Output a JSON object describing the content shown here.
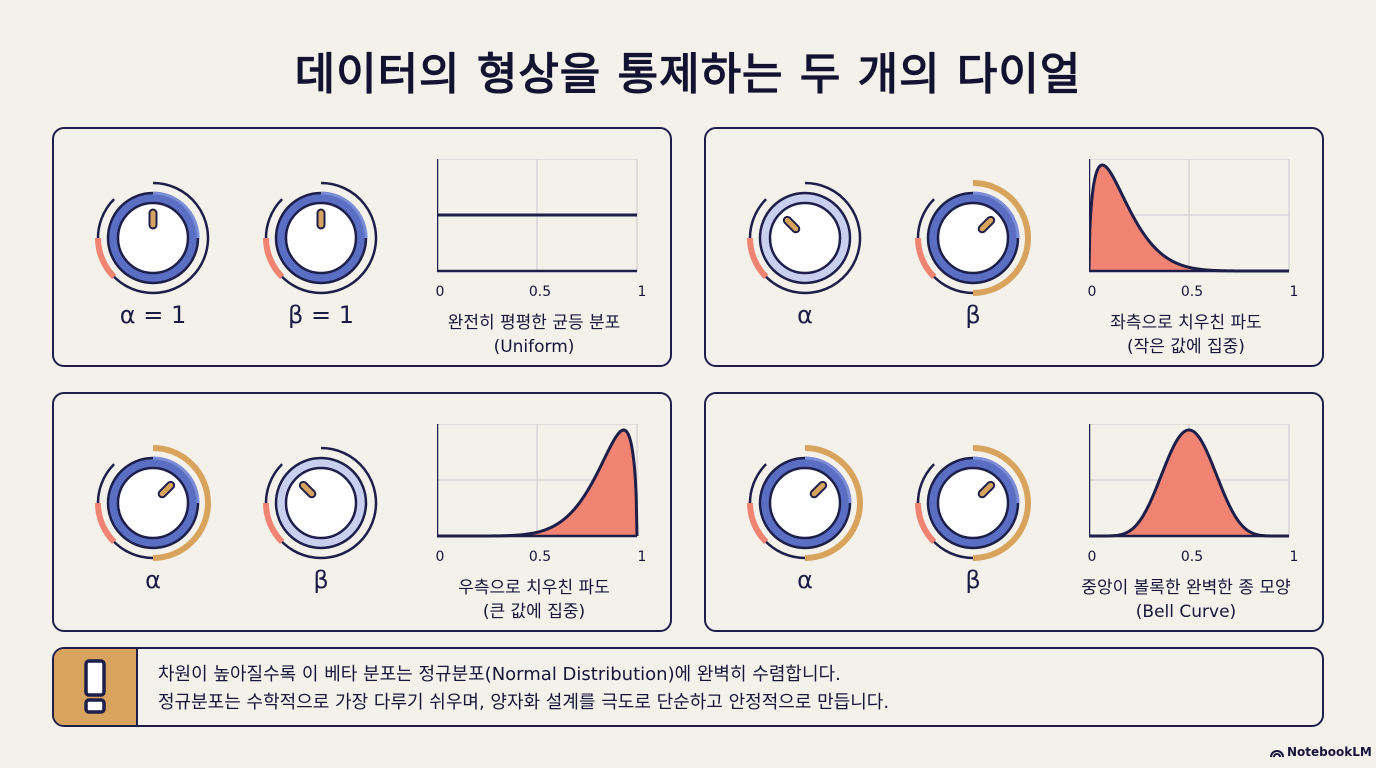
{
  "title": "데이터의 형상을 통제하는 두 개의 다이얼",
  "colors": {
    "navy": "#1d1f4a",
    "knob_blue": "#5a6fc4",
    "knob_pale": "#c9cfee",
    "orange": "#d8a35c",
    "coral": "#f08372",
    "background": "#f3f1ea"
  },
  "panels": [
    {
      "alpha_label": "α = 1",
      "beta_label": "β = 1",
      "alpha_knob": {
        "style": "normal",
        "level": 0.5
      },
      "beta_knob": {
        "style": "normal",
        "level": 0.5
      },
      "caption_line1": "완전히 평평한 균등 분포",
      "caption_line2": "(Uniform)",
      "chart_data": {
        "type": "line",
        "distribution": "Beta(1,1)",
        "alpha": 1,
        "beta": 1,
        "x_ticks": [
          "0",
          "0.5",
          "1"
        ],
        "xlim": [
          0,
          1
        ],
        "grid": true,
        "filled": false
      }
    },
    {
      "alpha_label": "α",
      "beta_label": "β",
      "alpha_knob": {
        "style": "pale",
        "level": 0.25
      },
      "beta_knob": {
        "style": "highlight",
        "level": 0.75
      },
      "caption_line1": "좌측으로 치우친 파도",
      "caption_line2": "(작은 값에 집중)",
      "chart_data": {
        "type": "area",
        "distribution": "Beta(small α, large β)",
        "alpha": 1.5,
        "beta": 8,
        "x_ticks": [
          "0",
          "0.5",
          "1"
        ],
        "xlim": [
          0,
          1
        ],
        "grid": true,
        "filled": true
      }
    },
    {
      "alpha_label": "α",
      "beta_label": "β",
      "alpha_knob": {
        "style": "highlight",
        "level": 0.75
      },
      "beta_knob": {
        "style": "pale",
        "level": 0.25
      },
      "caption_line1": "우측으로 치우친 파도",
      "caption_line2": "(큰 값에 집중)",
      "chart_data": {
        "type": "area",
        "distribution": "Beta(large α, small β)",
        "alpha": 8,
        "beta": 1.5,
        "x_ticks": [
          "0",
          "0.5",
          "1"
        ],
        "xlim": [
          0,
          1
        ],
        "grid": true,
        "filled": true
      }
    },
    {
      "alpha_label": "α",
      "beta_label": "β",
      "alpha_knob": {
        "style": "highlight",
        "level": 0.75
      },
      "beta_knob": {
        "style": "highlight",
        "level": 0.75
      },
      "caption_line1": "중앙이 볼록한 완벽한 종 모양",
      "caption_line2": "(Bell Curve)",
      "chart_data": {
        "type": "area",
        "distribution": "Beta(large α, large β)",
        "alpha": 8,
        "beta": 8,
        "x_ticks": [
          "0",
          "0.5",
          "1"
        ],
        "xlim": [
          0,
          1
        ],
        "grid": true,
        "filled": true
      }
    }
  ],
  "note": {
    "icon": "exclamation-icon",
    "line1": "차원이 높아질수록 이 베타 분포는 정규분포(Normal Distribution)에 완벽히 수렴합니다.",
    "line2": "정규분포는 수학적으로 가장 다루기 쉬우며, 양자화 설계를 극도로 단순하고 안정적으로 만듭니다."
  },
  "brand": "NotebookLM"
}
